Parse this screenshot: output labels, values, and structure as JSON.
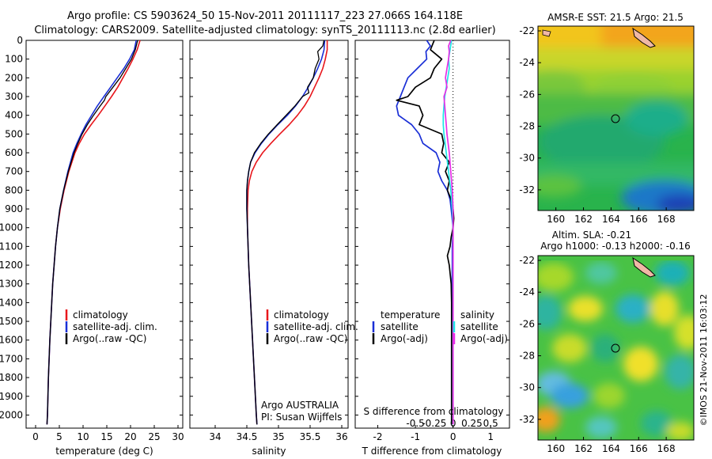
{
  "header": {
    "line1": "Argo profile: CS 5903624_50 15-Nov-2011 20111117_223 27.066S 164.118E",
    "line2": "Climatology: CARS2009. Satellite-adjusted climatology: synTS_20111113.nc (2.8d earlier)"
  },
  "colors": {
    "climatology": "#e8161c",
    "satellite": "#1a2fd6",
    "argo": "#000000",
    "sat_salinity": "#1ee5e5",
    "argo_salinity_adj": "#e62ee6"
  },
  "depth_ticks": [
    "0",
    "100",
    "200",
    "300",
    "400",
    "500",
    "600",
    "700",
    "800",
    "900",
    "1000",
    "1100",
    "1200",
    "1300",
    "1400",
    "1500",
    "1600",
    "1700",
    "1800",
    "1900",
    "2000"
  ],
  "chart_data": [
    {
      "type": "line",
      "xlabel": "temperature (deg C)",
      "xlim": [
        -2,
        31
      ],
      "ylim": [
        2070,
        0
      ],
      "xticks": [
        "0",
        "5",
        "10",
        "15",
        "20",
        "25",
        "30"
      ],
      "legend": [
        "climatology",
        "satellite-adj. clim.",
        "Argo(..raw -QC)"
      ],
      "legend_position": "lower-center",
      "series": [
        {
          "name": "climatology",
          "depth": [
            0,
            50,
            100,
            150,
            200,
            250,
            300,
            350,
            400,
            450,
            500,
            550,
            600,
            700,
            800,
            900,
            1000,
            1100,
            1200,
            1300,
            1400,
            1500,
            1600,
            1800,
            2000,
            2050
          ],
          "values": [
            22.0,
            21.4,
            20.5,
            19.5,
            18.4,
            17.3,
            16.0,
            14.6,
            13.2,
            11.7,
            10.3,
            9.2,
            8.3,
            7.0,
            6.0,
            5.2,
            4.6,
            4.2,
            3.9,
            3.6,
            3.4,
            3.2,
            3.0,
            2.7,
            2.5,
            2.4
          ]
        },
        {
          "name": "satellite-adj. clim.",
          "depth": [
            0,
            50,
            100,
            150,
            200,
            250,
            300,
            350,
            400,
            450,
            500,
            550,
            600,
            700,
            800,
            900,
            1000,
            1100,
            1200,
            1300,
            1400,
            1500,
            1600,
            1800,
            2000,
            2050
          ],
          "values": [
            21.2,
            20.8,
            19.8,
            18.6,
            17.2,
            15.8,
            14.4,
            13.0,
            11.8,
            10.6,
            9.6,
            8.7,
            7.9,
            6.8,
            5.9,
            5.1,
            4.6,
            4.2,
            3.9,
            3.6,
            3.4,
            3.2,
            3.0,
            2.7,
            2.5,
            2.4
          ]
        },
        {
          "name": "Argo(..raw -QC)",
          "depth": [
            0,
            50,
            100,
            150,
            200,
            250,
            300,
            320,
            350,
            400,
            450,
            500,
            550,
            600,
            700,
            800,
            900,
            1000,
            1100,
            1200,
            1300,
            1400,
            1500,
            1600,
            1800,
            2000,
            2050
          ],
          "values": [
            21.5,
            21.0,
            20.2,
            19.0,
            17.8,
            16.3,
            14.8,
            14.5,
            13.6,
            12.2,
            10.9,
            9.8,
            8.9,
            8.1,
            6.9,
            5.9,
            5.1,
            4.6,
            4.2,
            3.9,
            3.6,
            3.4,
            3.2,
            3.0,
            2.7,
            2.5,
            2.4
          ]
        }
      ]
    },
    {
      "type": "line",
      "xlabel": "salinity",
      "xlim": [
        33.6,
        36.1
      ],
      "ylim": [
        2070,
        0
      ],
      "xticks": [
        "34",
        "34.5",
        "35",
        "35.5",
        "36"
      ],
      "legend": [
        "climatology",
        "satellite-adj. clim.",
        "Argo(..raw -QC)"
      ],
      "legend_position": "lower-center",
      "note": [
        "Argo AUSTRALIA",
        "PI: Susan Wijffels"
      ],
      "series": [
        {
          "name": "climatology",
          "depth": [
            0,
            50,
            100,
            150,
            200,
            250,
            300,
            350,
            400,
            450,
            500,
            550,
            600,
            650,
            700,
            750,
            800,
            900,
            1000,
            1200,
            1400,
            1600,
            1800,
            2000,
            2050
          ],
          "values": [
            35.77,
            35.77,
            35.74,
            35.7,
            35.64,
            35.57,
            35.5,
            35.41,
            35.3,
            35.17,
            35.02,
            34.88,
            34.75,
            34.65,
            34.58,
            34.54,
            34.52,
            34.51,
            34.51,
            34.53,
            34.56,
            34.59,
            34.62,
            34.65,
            34.66
          ]
        },
        {
          "name": "satellite-adj. clim.",
          "depth": [
            0,
            50,
            100,
            150,
            200,
            250,
            300,
            350,
            400,
            450,
            500,
            550,
            600,
            650,
            700,
            750,
            800,
            900,
            1000,
            1200,
            1400,
            1600,
            1800,
            2000,
            2050
          ],
          "values": [
            35.73,
            35.72,
            35.68,
            35.62,
            35.55,
            35.47,
            35.38,
            35.27,
            35.14,
            34.99,
            34.85,
            34.73,
            34.63,
            34.56,
            34.53,
            34.51,
            34.5,
            34.5,
            34.51,
            34.53,
            34.56,
            34.59,
            34.62,
            34.65,
            34.66
          ]
        },
        {
          "name": "Argo(..raw -QC)",
          "depth": [
            0,
            30,
            60,
            100,
            150,
            200,
            250,
            280,
            300,
            350,
            400,
            450,
            500,
            550,
            600,
            650,
            700,
            750,
            800,
            900,
            1000,
            1200,
            1400,
            1600,
            1800,
            2000,
            2050
          ],
          "values": [
            35.72,
            35.7,
            35.62,
            35.64,
            35.58,
            35.55,
            35.46,
            35.48,
            35.38,
            35.26,
            35.12,
            34.98,
            34.84,
            34.72,
            34.62,
            34.56,
            34.53,
            34.51,
            34.5,
            34.5,
            34.51,
            34.53,
            34.56,
            34.59,
            34.62,
            34.65,
            34.66
          ]
        }
      ]
    },
    {
      "type": "line",
      "xlabel": "T difference from climatology",
      "xlabel_top": "S difference from climatology",
      "xlim": [
        -2.6,
        1.5
      ],
      "ylim": [
        2070,
        0
      ],
      "xticks": [
        "-2",
        "-1",
        "0",
        "1"
      ],
      "xticks_top": [
        "-0.5",
        "-0.25",
        "0",
        "0.25",
        "0.5"
      ],
      "zero_line": "dotted",
      "legend_temperature_title": "temperature",
      "legend_salinity_title": "salinity",
      "legend": [
        "satellite",
        "Argo(-adj)",
        "satellite",
        "Argo(-adj)"
      ],
      "series": [
        {
          "name": "satellite",
          "var": "T",
          "depth": [
            0,
            30,
            60,
            100,
            150,
            200,
            250,
            300,
            350,
            400,
            450,
            500,
            550,
            600,
            650,
            700,
            750,
            800,
            850,
            900,
            1000,
            1100,
            1200,
            1400,
            1600,
            1800,
            2000,
            2050
          ],
          "values": [
            -0.7,
            -0.6,
            -0.72,
            -0.7,
            -0.95,
            -1.2,
            -1.3,
            -1.4,
            -1.5,
            -1.45,
            -1.1,
            -0.9,
            -0.8,
            -0.45,
            -0.35,
            -0.4,
            -0.3,
            -0.15,
            -0.08,
            -0.05,
            0,
            -0.02,
            -0.02,
            -0.03,
            -0.04,
            -0.04,
            -0.04,
            -0.04
          ]
        },
        {
          "name": "Argo(-adj)",
          "var": "T",
          "depth": [
            0,
            50,
            100,
            150,
            200,
            250,
            300,
            320,
            350,
            400,
            450,
            500,
            550,
            600,
            650,
            700,
            750,
            800,
            850,
            900,
            950,
            1000,
            1050,
            1100,
            1150,
            1200,
            1300,
            1400,
            1600,
            1800,
            2000,
            2050
          ],
          "values": [
            -0.5,
            -0.6,
            -0.3,
            -0.5,
            -0.6,
            -1.0,
            -1.2,
            -1.5,
            -0.9,
            -0.8,
            -0.9,
            -0.3,
            -0.25,
            -0.3,
            -0.1,
            -0.2,
            -0.1,
            -0.15,
            -0.05,
            0,
            0.02,
            0,
            -0.05,
            -0.08,
            -0.15,
            -0.1,
            -0.05,
            -0.04,
            -0.04,
            -0.04,
            -0.04,
            -0.04
          ]
        },
        {
          "name": "satellite",
          "var": "S",
          "depth": [
            0,
            50,
            100,
            150,
            200,
            250,
            300,
            350,
            400,
            450,
            500,
            600,
            700,
            800,
            900,
            1000,
            1200,
            1400,
            1600,
            1800,
            2000,
            2050
          ],
          "values": [
            -0.02,
            -0.04,
            -0.06,
            -0.05,
            -0.07,
            -0.09,
            -0.11,
            -0.12,
            -0.13,
            -0.13,
            -0.12,
            -0.09,
            -0.06,
            -0.03,
            -0.01,
            0,
            0,
            0,
            0,
            0,
            0,
            0
          ]
        },
        {
          "name": "Argo(-adj)",
          "var": "S",
          "depth": [
            0,
            30,
            60,
            100,
            150,
            200,
            250,
            300,
            350,
            400,
            450,
            500,
            600,
            700,
            800,
            900,
            1000,
            1200,
            1400,
            1600,
            1800,
            2000,
            2050
          ],
          "values": [
            -0.03,
            -0.06,
            -0.05,
            -0.06,
            -0.08,
            -0.1,
            -0.08,
            -0.12,
            -0.11,
            -0.1,
            -0.09,
            -0.08,
            -0.05,
            -0.03,
            -0.01,
            0,
            0,
            0,
            0,
            0,
            0,
            0,
            0
          ]
        }
      ]
    },
    {
      "type": "heatmap",
      "title": "AMSR-E SST: 21.5 Argo: 21.5",
      "xlim": [
        158.7,
        170
      ],
      "ylim": [
        -33.3,
        -21.7
      ],
      "xticks": [
        "160",
        "162",
        "164",
        "166",
        "168"
      ],
      "yticks": [
        "-22",
        "-24",
        "-26",
        "-28",
        "-30",
        "-32"
      ],
      "marker": {
        "lon": 164.118,
        "lat": -27.066
      }
    },
    {
      "type": "heatmap",
      "title": "Altim. SLA: -0.21",
      "subtitle": "Argo h1000: -0.13 h2000: -0.16",
      "xlim": [
        158.7,
        170
      ],
      "ylim": [
        -33.3,
        -21.7
      ],
      "xticks": [
        "160",
        "162",
        "164",
        "166",
        "168"
      ],
      "yticks": [
        "-22",
        "-24",
        "-26",
        "-28",
        "-30",
        "-32"
      ],
      "marker": {
        "lon": 164.118,
        "lat": -27.066
      }
    }
  ],
  "side_label": "©IMOS 21-Nov-2011 16:03:12"
}
